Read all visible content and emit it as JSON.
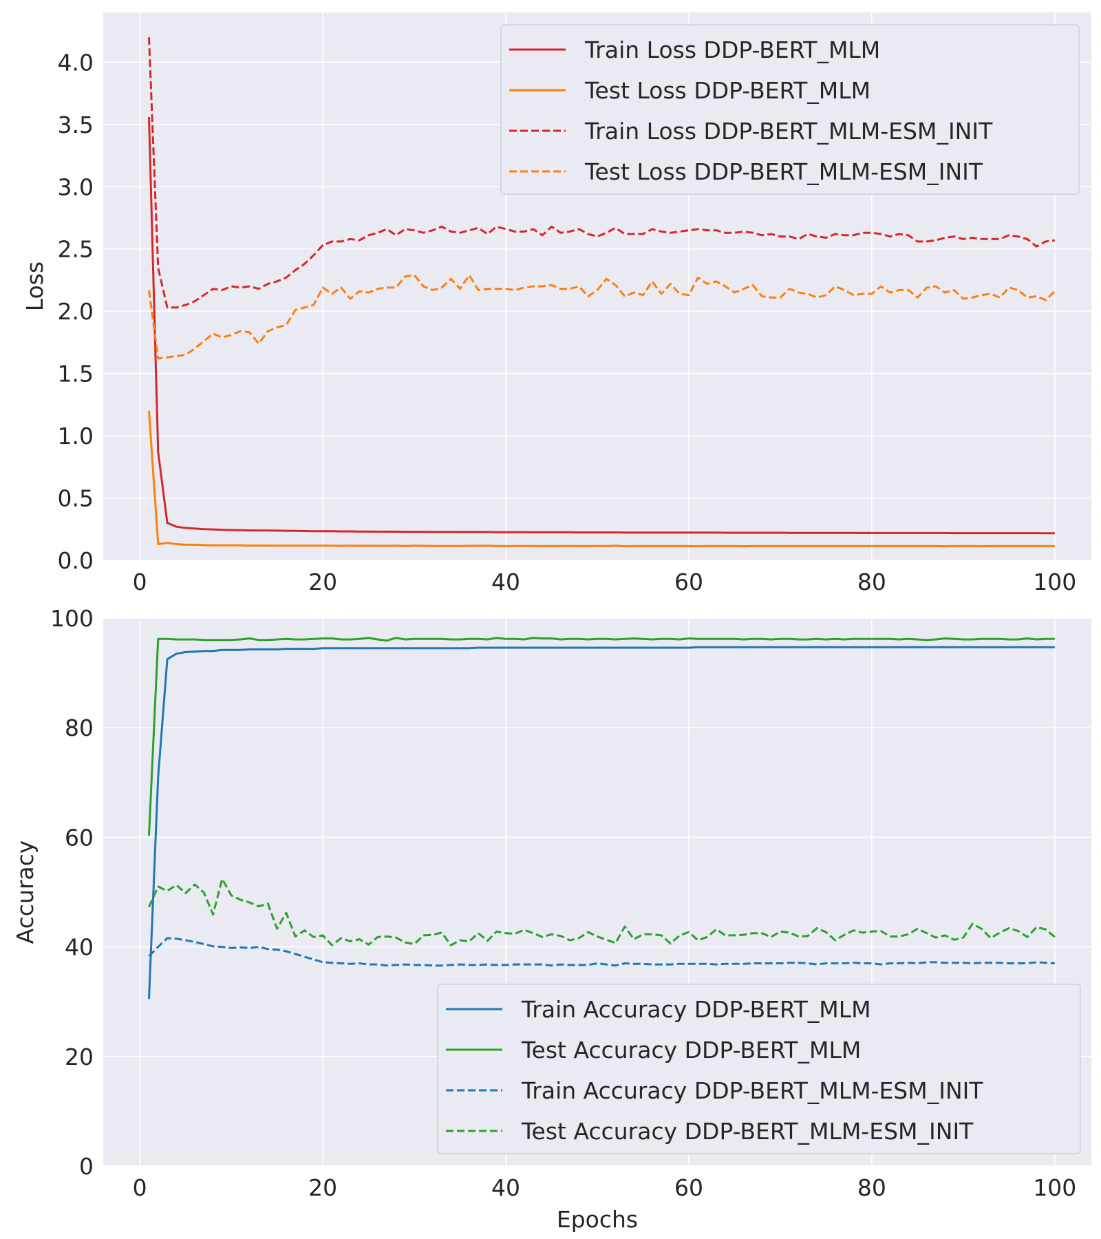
{
  "chart_data": [
    {
      "type": "line",
      "xlabel": "",
      "ylabel": "Loss",
      "xlim": [
        -4,
        104
      ],
      "ylim": [
        0,
        4.4
      ],
      "xticks": [
        0,
        20,
        40,
        60,
        80,
        100
      ],
      "yticks": [
        0.0,
        0.5,
        1.0,
        1.5,
        2.0,
        2.5,
        3.0,
        3.5,
        4.0
      ],
      "ytick_labels": [
        "0.0",
        "0.5",
        "1.0",
        "1.5",
        "2.0",
        "2.5",
        "3.0",
        "3.5",
        "4.0"
      ],
      "grid": true,
      "legend_position": "top-right",
      "x": [
        1,
        2,
        3,
        4,
        5,
        6,
        7,
        8,
        9,
        10,
        11,
        12,
        13,
        14,
        15,
        16,
        17,
        18,
        19,
        20,
        21,
        22,
        23,
        24,
        25,
        26,
        27,
        28,
        29,
        30,
        31,
        32,
        33,
        34,
        35,
        36,
        37,
        38,
        39,
        40,
        41,
        42,
        43,
        44,
        45,
        46,
        47,
        48,
        49,
        50,
        51,
        52,
        53,
        54,
        55,
        56,
        57,
        58,
        59,
        60,
        61,
        62,
        63,
        64,
        65,
        66,
        67,
        68,
        69,
        70,
        71,
        72,
        73,
        74,
        75,
        76,
        77,
        78,
        79,
        80,
        81,
        82,
        83,
        84,
        85,
        86,
        87,
        88,
        89,
        90,
        91,
        92,
        93,
        94,
        95,
        96,
        97,
        98,
        99,
        100
      ],
      "series": [
        {
          "name": "Train Loss DDP-BERT_MLM",
          "color": "#d62728",
          "dash": "solid",
          "values": [
            3.56,
            0.87,
            0.3,
            0.27,
            0.26,
            0.255,
            0.25,
            0.248,
            0.245,
            0.243,
            0.242,
            0.24,
            0.24,
            0.239,
            0.238,
            0.237,
            0.236,
            0.235,
            0.234,
            0.233,
            0.233,
            0.232,
            0.232,
            0.231,
            0.231,
            0.23,
            0.23,
            0.23,
            0.229,
            0.229,
            0.229,
            0.228,
            0.228,
            0.228,
            0.227,
            0.227,
            0.227,
            0.227,
            0.226,
            0.226,
            0.226,
            0.226,
            0.225,
            0.225,
            0.225,
            0.225,
            0.225,
            0.224,
            0.224,
            0.224,
            0.224,
            0.224,
            0.223,
            0.223,
            0.223,
            0.223,
            0.223,
            0.222,
            0.222,
            0.222,
            0.222,
            0.222,
            0.222,
            0.221,
            0.221,
            0.221,
            0.221,
            0.221,
            0.221,
            0.221,
            0.22,
            0.22,
            0.22,
            0.22,
            0.22,
            0.22,
            0.22,
            0.22,
            0.219,
            0.219,
            0.219,
            0.219,
            0.219,
            0.219,
            0.219,
            0.219,
            0.219,
            0.219,
            0.218,
            0.218,
            0.218,
            0.218,
            0.218,
            0.218,
            0.218,
            0.218,
            0.218,
            0.218,
            0.217,
            0.217
          ]
        },
        {
          "name": "Test Loss DDP-BERT_MLM",
          "color": "#ff7f0e",
          "dash": "solid",
          "values": [
            1.2,
            0.13,
            0.14,
            0.13,
            0.125,
            0.125,
            0.122,
            0.12,
            0.12,
            0.12,
            0.12,
            0.118,
            0.119,
            0.118,
            0.118,
            0.118,
            0.117,
            0.118,
            0.118,
            0.117,
            0.117,
            0.116,
            0.117,
            0.116,
            0.117,
            0.116,
            0.116,
            0.117,
            0.115,
            0.117,
            0.116,
            0.115,
            0.115,
            0.115,
            0.115,
            0.116,
            0.116,
            0.117,
            0.115,
            0.114,
            0.115,
            0.115,
            0.115,
            0.114,
            0.114,
            0.115,
            0.115,
            0.114,
            0.114,
            0.115,
            0.115,
            0.117,
            0.113,
            0.114,
            0.115,
            0.114,
            0.114,
            0.114,
            0.114,
            0.114,
            0.113,
            0.114,
            0.114,
            0.114,
            0.114,
            0.113,
            0.114,
            0.114,
            0.115,
            0.114,
            0.114,
            0.114,
            0.114,
            0.114,
            0.114,
            0.114,
            0.115,
            0.114,
            0.114,
            0.114,
            0.114,
            0.114,
            0.114,
            0.114,
            0.114,
            0.114,
            0.114,
            0.113,
            0.114,
            0.114,
            0.114,
            0.113,
            0.114,
            0.114,
            0.114,
            0.114,
            0.114,
            0.114,
            0.114,
            0.114
          ]
        },
        {
          "name": "Train Loss DDP-BERT_MLM-ESM_INIT",
          "color": "#d62728",
          "dash": "dashed",
          "values": [
            4.2,
            2.35,
            2.03,
            2.03,
            2.05,
            2.08,
            2.13,
            2.18,
            2.17,
            2.2,
            2.19,
            2.2,
            2.18,
            2.22,
            2.24,
            2.27,
            2.33,
            2.38,
            2.45,
            2.53,
            2.56,
            2.56,
            2.58,
            2.57,
            2.61,
            2.63,
            2.66,
            2.61,
            2.66,
            2.65,
            2.63,
            2.65,
            2.68,
            2.64,
            2.63,
            2.65,
            2.67,
            2.62,
            2.68,
            2.66,
            2.64,
            2.64,
            2.66,
            2.61,
            2.68,
            2.63,
            2.64,
            2.66,
            2.62,
            2.6,
            2.63,
            2.67,
            2.62,
            2.62,
            2.62,
            2.66,
            2.64,
            2.63,
            2.64,
            2.65,
            2.66,
            2.65,
            2.65,
            2.63,
            2.63,
            2.64,
            2.63,
            2.61,
            2.62,
            2.6,
            2.6,
            2.58,
            2.62,
            2.6,
            2.59,
            2.62,
            2.61,
            2.61,
            2.63,
            2.63,
            2.62,
            2.6,
            2.62,
            2.61,
            2.56,
            2.56,
            2.57,
            2.59,
            2.6,
            2.58,
            2.59,
            2.58,
            2.58,
            2.58,
            2.61,
            2.6,
            2.58,
            2.52,
            2.56,
            2.57
          ]
        },
        {
          "name": "Test Loss DDP-BERT_MLM-ESM_INIT",
          "color": "#ff7f0e",
          "dash": "dashed",
          "values": [
            2.17,
            1.62,
            1.63,
            1.64,
            1.65,
            1.7,
            1.76,
            1.82,
            1.79,
            1.81,
            1.84,
            1.83,
            1.74,
            1.84,
            1.87,
            1.89,
            2.01,
            2.03,
            2.05,
            2.19,
            2.14,
            2.19,
            2.1,
            2.16,
            2.15,
            2.18,
            2.19,
            2.19,
            2.28,
            2.29,
            2.2,
            2.17,
            2.19,
            2.26,
            2.18,
            2.29,
            2.17,
            2.18,
            2.18,
            2.18,
            2.17,
            2.19,
            2.2,
            2.2,
            2.21,
            2.18,
            2.18,
            2.2,
            2.12,
            2.17,
            2.26,
            2.21,
            2.12,
            2.15,
            2.13,
            2.24,
            2.14,
            2.22,
            2.14,
            2.13,
            2.27,
            2.22,
            2.24,
            2.2,
            2.15,
            2.18,
            2.21,
            2.12,
            2.11,
            2.11,
            2.18,
            2.15,
            2.14,
            2.11,
            2.13,
            2.2,
            2.17,
            2.13,
            2.14,
            2.14,
            2.2,
            2.15,
            2.17,
            2.17,
            2.11,
            2.19,
            2.2,
            2.15,
            2.17,
            2.1,
            2.11,
            2.13,
            2.14,
            2.11,
            2.19,
            2.17,
            2.11,
            2.12,
            2.09,
            2.16
          ]
        }
      ]
    },
    {
      "type": "line",
      "xlabel": "Epochs",
      "ylabel": "Accuracy",
      "xlim": [
        -4,
        104
      ],
      "ylim": [
        0,
        100
      ],
      "xticks": [
        0,
        20,
        40,
        60,
        80,
        100
      ],
      "yticks": [
        0,
        20,
        40,
        60,
        80,
        100
      ],
      "ytick_labels": [
        "0",
        "20",
        "40",
        "60",
        "80",
        "100"
      ],
      "grid": true,
      "legend_position": "lower-right",
      "x": [
        1,
        2,
        3,
        4,
        5,
        6,
        7,
        8,
        9,
        10,
        11,
        12,
        13,
        14,
        15,
        16,
        17,
        18,
        19,
        20,
        21,
        22,
        23,
        24,
        25,
        26,
        27,
        28,
        29,
        30,
        31,
        32,
        33,
        34,
        35,
        36,
        37,
        38,
        39,
        40,
        41,
        42,
        43,
        44,
        45,
        46,
        47,
        48,
        49,
        50,
        51,
        52,
        53,
        54,
        55,
        56,
        57,
        58,
        59,
        60,
        61,
        62,
        63,
        64,
        65,
        66,
        67,
        68,
        69,
        70,
        71,
        72,
        73,
        74,
        75,
        76,
        77,
        78,
        79,
        80,
        81,
        82,
        83,
        84,
        85,
        86,
        87,
        88,
        89,
        90,
        91,
        92,
        93,
        94,
        95,
        96,
        97,
        98,
        99,
        100
      ],
      "series": [
        {
          "name": "Train Accuracy DDP-BERT_MLM",
          "color": "#1f77b4",
          "dash": "solid",
          "values": [
            30.5,
            71,
            92.5,
            93.5,
            93.8,
            93.9,
            94,
            94,
            94.2,
            94.2,
            94.2,
            94.3,
            94.3,
            94.3,
            94.3,
            94.4,
            94.4,
            94.4,
            94.4,
            94.5,
            94.5,
            94.5,
            94.5,
            94.5,
            94.5,
            94.5,
            94.5,
            94.5,
            94.5,
            94.5,
            94.5,
            94.5,
            94.5,
            94.5,
            94.5,
            94.5,
            94.6,
            94.6,
            94.6,
            94.6,
            94.6,
            94.6,
            94.6,
            94.6,
            94.6,
            94.6,
            94.6,
            94.6,
            94.6,
            94.6,
            94.6,
            94.6,
            94.6,
            94.6,
            94.6,
            94.6,
            94.6,
            94.6,
            94.6,
            94.6,
            94.7,
            94.7,
            94.7,
            94.7,
            94.7,
            94.7,
            94.7,
            94.7,
            94.7,
            94.7,
            94.7,
            94.7,
            94.7,
            94.7,
            94.7,
            94.7,
            94.7,
            94.7,
            94.7,
            94.7,
            94.7,
            94.7,
            94.7,
            94.7,
            94.7,
            94.7,
            94.7,
            94.7,
            94.7,
            94.7,
            94.7,
            94.7,
            94.7,
            94.7,
            94.7,
            94.7,
            94.7,
            94.7,
            94.7,
            94.7
          ]
        },
        {
          "name": "Test Accuracy DDP-BERT_MLM",
          "color": "#2ca02c",
          "dash": "solid",
          "values": [
            60.3,
            96.2,
            96.2,
            96.1,
            96.1,
            96.1,
            96,
            96,
            96,
            96,
            96.1,
            96.3,
            96,
            96,
            96.1,
            96.2,
            96.1,
            96.1,
            96.2,
            96.3,
            96.3,
            96.1,
            96.1,
            96.2,
            96.4,
            96.1,
            95.9,
            96.4,
            96.1,
            96.2,
            96.2,
            96.2,
            96.2,
            96.1,
            96.1,
            96.2,
            96.2,
            96.1,
            96.4,
            96.2,
            96.2,
            96.1,
            96.4,
            96.3,
            96.3,
            96.1,
            96.2,
            96.2,
            96.1,
            96.2,
            96.2,
            96.1,
            96.2,
            96.3,
            96.2,
            96.1,
            96.2,
            96.2,
            96.1,
            96.3,
            96.2,
            96.2,
            96.2,
            96.2,
            96.2,
            96.1,
            96.2,
            96.2,
            96.1,
            96.2,
            96.2,
            96.1,
            96.1,
            96.2,
            96.1,
            96.2,
            96.1,
            96.2,
            96.2,
            96.2,
            96.2,
            96.2,
            96.1,
            96.2,
            96.1,
            96,
            96.1,
            96.3,
            96.2,
            96.1,
            96.1,
            96.2,
            96.2,
            96.2,
            96.1,
            96.1,
            96.3,
            96.1,
            96.2,
            96.2
          ]
        },
        {
          "name": "Train Accuracy DDP-BERT_MLM-ESM_INIT",
          "color": "#1f77b4",
          "dash": "dashed",
          "values": [
            38.3,
            40,
            41.6,
            41.5,
            41.2,
            40.9,
            40.5,
            40.1,
            40,
            39.8,
            39.9,
            39.8,
            40,
            39.6,
            39.5,
            39.2,
            38.7,
            38.2,
            37.7,
            37.2,
            37.1,
            37,
            36.9,
            37,
            36.8,
            36.8,
            36.6,
            36.7,
            36.8,
            36.7,
            36.7,
            36.6,
            36.6,
            36.7,
            36.8,
            36.7,
            36.7,
            36.8,
            36.7,
            36.7,
            36.8,
            36.8,
            36.8,
            36.8,
            36.6,
            36.8,
            36.7,
            36.7,
            36.7,
            37,
            36.8,
            36.6,
            37,
            36.9,
            36.9,
            36.8,
            36.8,
            36.8,
            36.9,
            36.9,
            36.9,
            36.9,
            36.8,
            36.9,
            36.9,
            36.9,
            37,
            37,
            37,
            37,
            37.1,
            37.1,
            37,
            36.8,
            37,
            37,
            37,
            37.1,
            37,
            37,
            36.8,
            37,
            37,
            37.1,
            37,
            37.2,
            37.2,
            37.1,
            37.1,
            37.1,
            37,
            37.1,
            37.1,
            37.1,
            37,
            37,
            37,
            37.2,
            37.1,
            37
          ]
        },
        {
          "name": "Test Accuracy DDP-BERT_MLM-ESM_INIT",
          "color": "#2ca02c",
          "dash": "dashed",
          "values": [
            47.3,
            51,
            50.2,
            51.3,
            49.8,
            51.4,
            49.9,
            45.9,
            52.4,
            49.4,
            48.6,
            48.1,
            47.4,
            47.9,
            43.3,
            46.2,
            41.9,
            43,
            41.8,
            42.1,
            40.3,
            41.6,
            41,
            41.4,
            40.4,
            41.8,
            41.9,
            41.7,
            40.8,
            40.5,
            42.1,
            42.2,
            42.6,
            40.3,
            41.2,
            41,
            42.5,
            41.1,
            42.8,
            42.5,
            42.4,
            43.1,
            42.5,
            41.8,
            42.3,
            42,
            41.2,
            41.6,
            42.7,
            41.9,
            41.3,
            40.7,
            43.7,
            41.4,
            42.3,
            42.3,
            42.1,
            40.6,
            42.1,
            42.7,
            41.2,
            41.8,
            43.2,
            42.1,
            42.1,
            42.2,
            42.5,
            42.5,
            41.8,
            42.8,
            42.6,
            41.9,
            42,
            43.4,
            42.7,
            41.2,
            42.2,
            43,
            42.6,
            42.8,
            42.9,
            41.9,
            41.9,
            42.3,
            43.3,
            42.5,
            41.7,
            42.1,
            41.3,
            41.7,
            44.2,
            43.3,
            41.6,
            42.6,
            43.4,
            42.9,
            41.8,
            43.6,
            43.2,
            41.8
          ]
        }
      ]
    }
  ]
}
